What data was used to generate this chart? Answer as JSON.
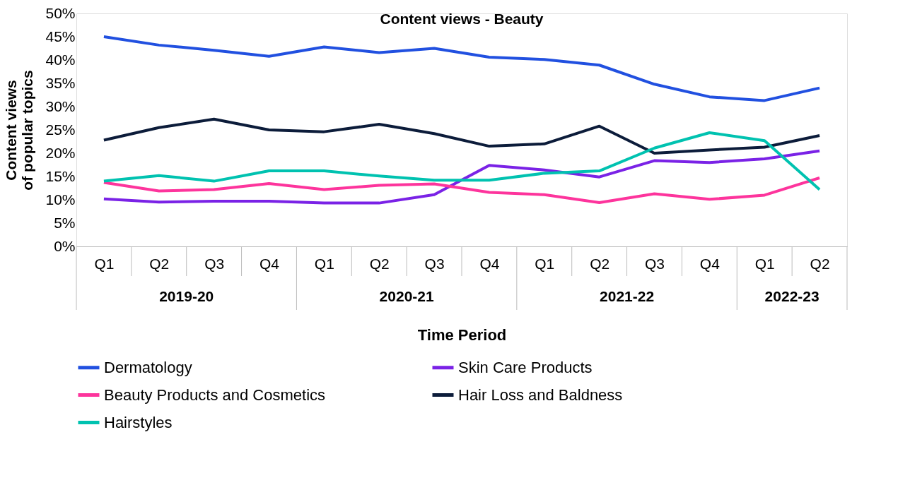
{
  "chart_data": {
    "type": "line",
    "title": "Content views - Beauty",
    "xlabel": "Time Period",
    "ylabel": "Content views\nof popular topics",
    "categories": [
      "Q1",
      "Q2",
      "Q3",
      "Q4",
      "Q1",
      "Q2",
      "Q3",
      "Q4",
      "Q1",
      "Q2",
      "Q3",
      "Q4",
      "Q1",
      "Q2"
    ],
    "annotations": [
      "2019-20",
      "2020-21",
      "2021-22",
      "2022-23"
    ],
    "series": [
      {
        "name": "Dermatology",
        "color": "#2150e0",
        "values": [
          45.0,
          43.2,
          42.1,
          40.8,
          42.8,
          41.6,
          42.5,
          40.6,
          40.1,
          38.9,
          34.8,
          32.1,
          31.3,
          34.0
        ]
      },
      {
        "name": "Skin Care Products",
        "color": "#7a22e6",
        "values": [
          10.2,
          9.5,
          9.7,
          9.7,
          9.3,
          9.3,
          11.1,
          17.4,
          16.4,
          14.9,
          18.4,
          18.0,
          18.8,
          20.5
        ]
      },
      {
        "name": "Beauty Products and Cosmetics",
        "color": "#fd349c",
        "values": [
          13.7,
          11.9,
          12.2,
          13.5,
          12.2,
          13.1,
          13.4,
          11.6,
          11.1,
          9.4,
          11.3,
          10.1,
          11.0,
          14.7
        ]
      },
      {
        "name": "Hair Loss and Baldness",
        "color": "#0c1c3a",
        "values": [
          22.8,
          25.5,
          27.3,
          25.0,
          24.6,
          26.2,
          24.2,
          21.5,
          22.0,
          25.8,
          20.0,
          20.7,
          21.3,
          23.8
        ]
      },
      {
        "name": "Hairstyles",
        "color": "#00c2b0",
        "values": [
          14.0,
          15.2,
          14.0,
          16.2,
          16.2,
          15.1,
          14.2,
          14.2,
          15.7,
          16.2,
          21.1,
          24.4,
          22.7,
          12.2
        ]
      }
    ],
    "ylim": [
      0,
      50
    ],
    "yticks": [
      {
        "value": 0,
        "label": "0%"
      },
      {
        "value": 5,
        "label": "5%"
      },
      {
        "value": 10,
        "label": "10%"
      },
      {
        "value": 15,
        "label": "15%"
      },
      {
        "value": 20,
        "label": "20%"
      },
      {
        "value": 25,
        "label": "25%"
      },
      {
        "value": 30,
        "label": "30%"
      },
      {
        "value": 35,
        "label": "35%"
      },
      {
        "value": 40,
        "label": "40%"
      },
      {
        "value": 45,
        "label": "45%"
      },
      {
        "value": 50,
        "label": "50%"
      }
    ],
    "grid": false,
    "legend": "bottom",
    "marker": "none",
    "line_style": "solid"
  }
}
